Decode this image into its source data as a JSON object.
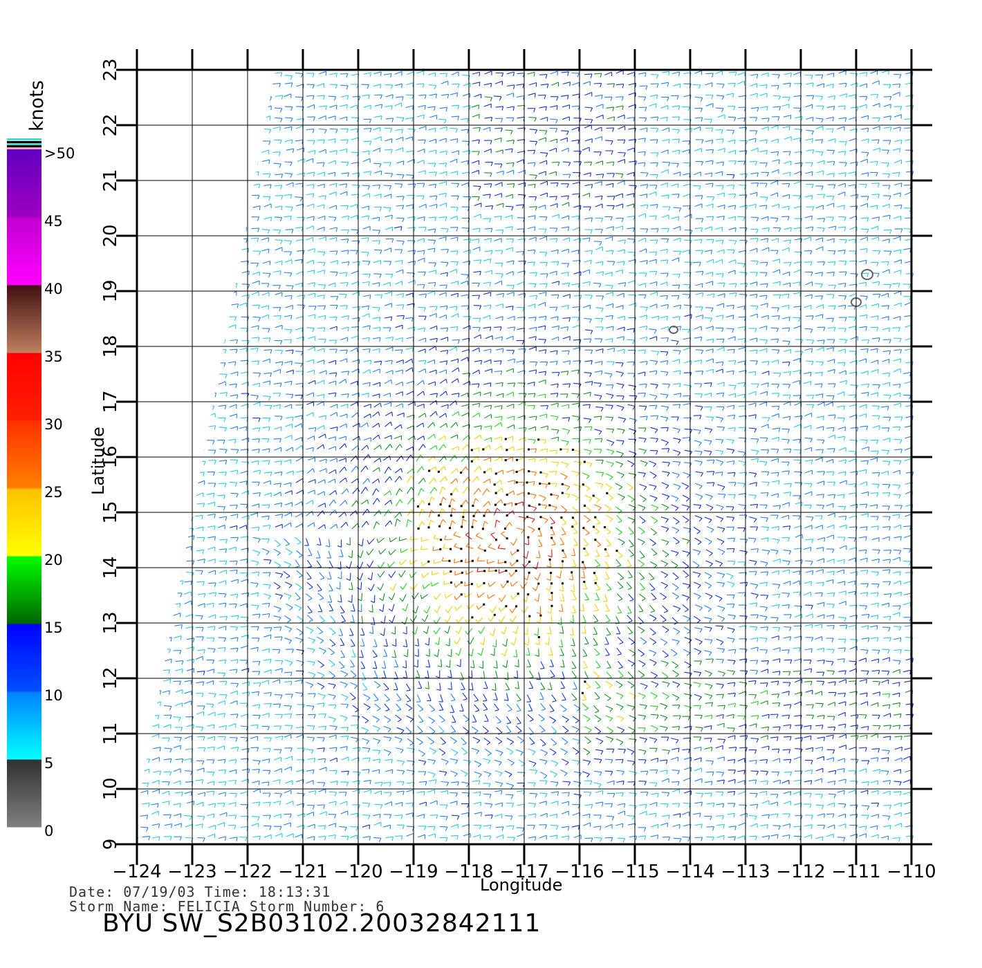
{
  "map": {
    "lon_ticks": [
      "-124",
      "-123",
      "-122",
      "-121",
      "-120",
      "-119",
      "-118",
      "-117",
      "-116",
      "-115",
      "-114",
      "-113",
      "-112",
      "-111",
      "-110"
    ],
    "lat_ticks": [
      "9",
      "10",
      "11",
      "12",
      "13",
      "14",
      "15",
      "16",
      "17",
      "18",
      "19",
      "20",
      "21",
      "22",
      "23"
    ],
    "lon_range": [
      -124,
      -110
    ],
    "lat_range": [
      9,
      23
    ],
    "x_label": "Longitude",
    "y_label": "Latitude",
    "storm_center": {
      "lon": -117.2,
      "lat": 14.6
    },
    "land": [
      {
        "lon": -114.3,
        "lat": 18.3
      },
      {
        "lon": -111.0,
        "lat": 18.8
      },
      {
        "lon": -110.8,
        "lat": 19.3
      }
    ]
  },
  "legend": {
    "units": "knots",
    "labels": [
      ">50",
      "45",
      "40",
      "35",
      "30",
      "25",
      "20",
      "15",
      "10",
      "5",
      "0"
    ],
    "bins": [
      {
        "range": [
          0,
          5
        ],
        "colors": [
          "#808080",
          "#303030"
        ]
      },
      {
        "range": [
          5,
          10
        ],
        "colors": [
          "#00ffff",
          "#0080ff"
        ]
      },
      {
        "range": [
          10,
          15
        ],
        "colors": [
          "#0050ff",
          "#0000ff"
        ]
      },
      {
        "range": [
          15,
          20
        ],
        "colors": [
          "#006400",
          "#00ff00"
        ]
      },
      {
        "range": [
          20,
          25
        ],
        "colors": [
          "#ffff00",
          "#ffc000"
        ]
      },
      {
        "range": [
          25,
          30
        ],
        "colors": [
          "#ff8000",
          "#ff3000"
        ]
      },
      {
        "range": [
          30,
          35
        ],
        "colors": [
          "#ff2000",
          "#ff0000"
        ]
      },
      {
        "range": [
          35,
          40
        ],
        "colors": [
          "#c08060",
          "#401010"
        ]
      },
      {
        "range": [
          40,
          45
        ],
        "colors": [
          "#ff00ff",
          "#c000d0"
        ]
      },
      {
        "range": [
          45,
          50
        ],
        "colors": [
          "#a000c0",
          "#6000c0"
        ]
      }
    ]
  },
  "footer": {
    "date_line": "Date: 07/19/03   Time: 18:13:31",
    "storm_line": "Storm Name: FELICIA   Storm Number: 6",
    "title": "BYU SW_S2B03102.20032842111"
  }
}
